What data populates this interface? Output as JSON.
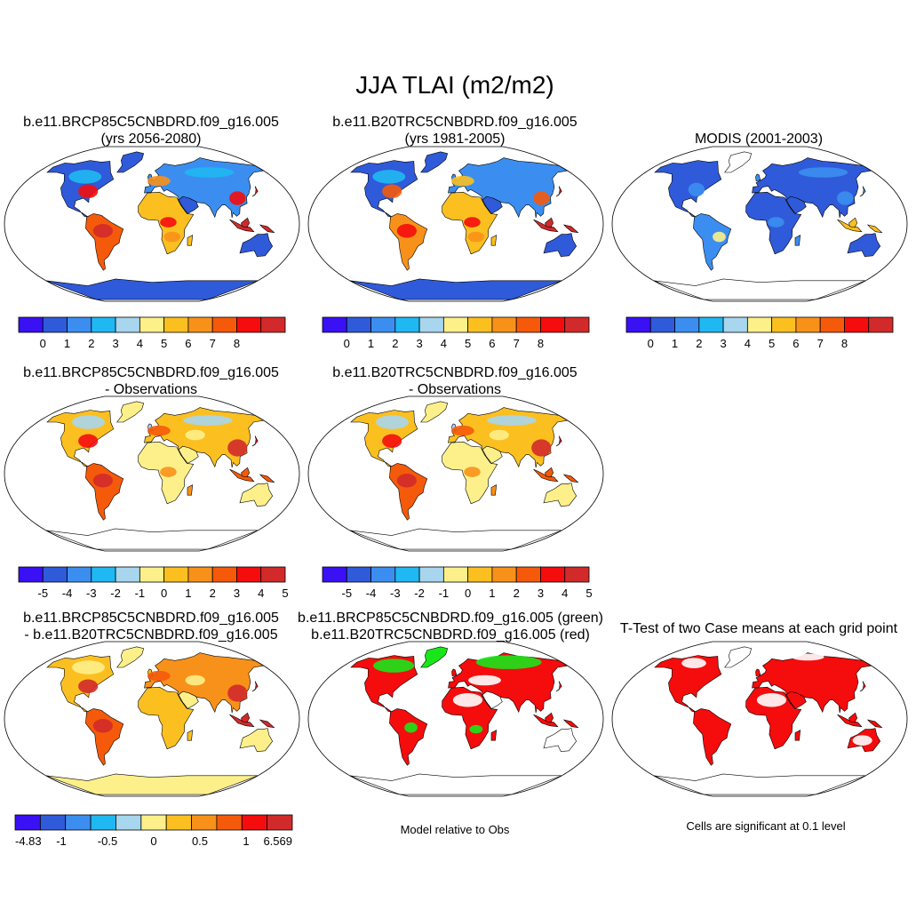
{
  "title": "JJA TLAI (m2/m2)",
  "panels": {
    "p1": {
      "line1": "b.e11.BRCP85C5CNBDRD.f09_g16.005",
      "line2": "(yrs 2056-2080)"
    },
    "p2": {
      "line1": "b.e11.B20TRC5CNBDRD.f09_g16.005",
      "line2": "(yrs 1981-2005)"
    },
    "p3": {
      "line1": "MODIS (2001-2003)"
    },
    "p4": {
      "line1": "b.e11.BRCP85C5CNBDRD.f09_g16.005",
      "line2": "- Observations"
    },
    "p5": {
      "line1": "b.e11.B20TRC5CNBDRD.f09_g16.005",
      "line2": "- Observations"
    },
    "p6": {
      "line1": "b.e11.BRCP85C5CNBDRD.f09_g16.005",
      "line2": "- b.e11.B20TRC5CNBDRD.f09_g16.005"
    },
    "p7": {
      "line1": "b.e11.BRCP85C5CNBDRD.f09_g16.005 (green)",
      "line2": "b.e11.B20TRC5CNBDRD.f09_g16.005 (red)",
      "note": "Model relative to Obs"
    },
    "p8": {
      "line1": "T-Test of two Case means at each grid point",
      "note": "Cells are significant at 0.1 level"
    }
  },
  "colorbars": {
    "abs": {
      "colors": [
        "#3a10f5",
        "#2f5ad9",
        "#3b8ef0",
        "#20b8f2",
        "#a7d6ee",
        "#fdf08a",
        "#fbc020",
        "#f8911a",
        "#f55a0a",
        "#f50c0c",
        "#d22a2a"
      ],
      "labels": [
        "0",
        "1",
        "2",
        "3",
        "4",
        "5",
        "6",
        "7",
        "8"
      ]
    },
    "diff": {
      "colors": [
        "#3a10f5",
        "#2f5ad9",
        "#3b8ef0",
        "#20b8f2",
        "#a7d6ee",
        "#fdf08a",
        "#fbc020",
        "#f8911a",
        "#f55a0a",
        "#f50c0c",
        "#d22a2a"
      ],
      "labels": [
        "-5",
        "-4",
        "-3",
        "-2",
        "-1",
        "0",
        "1",
        "2",
        "3",
        "4",
        "5"
      ]
    },
    "mdiff": {
      "colors": [
        "#3a10f5",
        "#2f5ad9",
        "#3b8ef0",
        "#20b8f2",
        "#a7d6ee",
        "#fdf08a",
        "#fbc020",
        "#f8911a",
        "#f55a0a",
        "#f50c0c",
        "#d22a2a"
      ],
      "labels": [
        "-4.83",
        "-1",
        "-0.5",
        "0",
        "0.5",
        "1",
        "6.569"
      ]
    }
  }
}
